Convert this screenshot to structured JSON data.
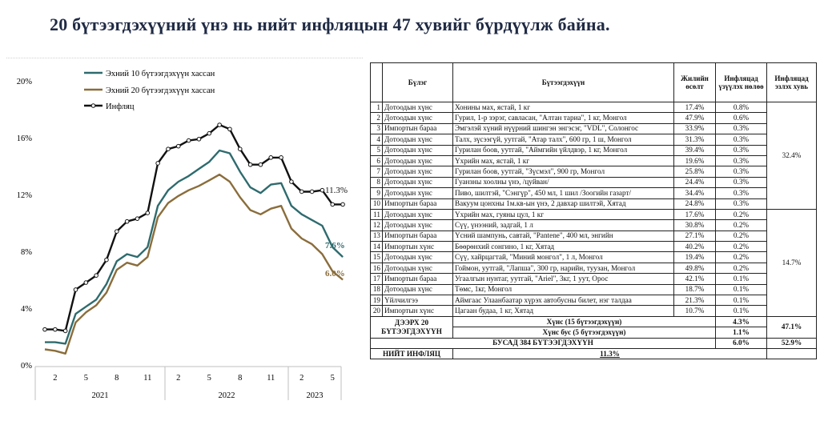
{
  "title": "20 бүтээгдэхүүний үнэ нь нийт инфляцын 47 хувийг бүрдүүлж байна.",
  "colors": {
    "series_top10": "#2e6b6e",
    "series_top20": "#8a6d3b",
    "inflation": "#111111",
    "title": "#1f2a44"
  },
  "chart_data": {
    "type": "line",
    "ylim": [
      0,
      20
    ],
    "yticks": [
      "0%",
      "4%",
      "8%",
      "12%",
      "16%",
      "20%"
    ],
    "ytick_values": [
      0,
      4,
      8,
      12,
      16,
      20
    ],
    "xtick_labels": [
      "2",
      "5",
      "8",
      "11",
      "2",
      "5",
      "8",
      "11",
      "2",
      "5"
    ],
    "xtick_index": [
      1,
      4,
      7,
      10,
      13,
      16,
      19,
      22,
      25,
      28
    ],
    "year_labels": [
      "2021",
      "2022",
      "2023"
    ],
    "legend_position": "top-left",
    "series": [
      {
        "name": "Эхний 10 бүтээгдэхүүн хассан",
        "key": "top10",
        "values": [
          1.6,
          1.6,
          1.5,
          3.6,
          4.1,
          4.6,
          5.7,
          7.3,
          7.8,
          7.6,
          8.3,
          11.2,
          12.3,
          12.9,
          13.3,
          13.8,
          14.3,
          15.1,
          14.9,
          13.6,
          12.5,
          12.1,
          12.7,
          12.8,
          11.2,
          10.6,
          10.2,
          9.8,
          8.3,
          7.6
        ],
        "end_label": "7.6%"
      },
      {
        "name": "Эхний 20 бүтээгдэхүүн хассан",
        "key": "top20",
        "values": [
          1.1,
          1.0,
          0.8,
          3.0,
          3.7,
          4.2,
          5.1,
          6.7,
          7.2,
          7.0,
          7.6,
          10.4,
          11.4,
          11.9,
          12.3,
          12.6,
          13.0,
          13.4,
          12.9,
          11.8,
          10.9,
          10.6,
          11.0,
          11.2,
          9.6,
          8.9,
          8.5,
          7.8,
          6.6,
          6.0
        ],
        "end_label": "6.0%"
      },
      {
        "name": "Инфляц",
        "key": "inflation",
        "values": [
          2.5,
          2.5,
          2.4,
          5.3,
          5.8,
          6.3,
          7.4,
          9.4,
          10.1,
          10.3,
          10.7,
          14.2,
          15.2,
          15.4,
          15.8,
          15.9,
          16.3,
          16.9,
          16.6,
          15.2,
          14.1,
          14.1,
          14.6,
          14.6,
          12.9,
          12.2,
          12.2,
          12.3,
          11.3,
          11.3
        ],
        "end_label": "11.3%"
      }
    ]
  },
  "table": {
    "headers": {
      "idx": "",
      "sector": "Бүлэг",
      "product": "Бүтээгдэхүүн",
      "annual": "Жилийн өсөлт",
      "contrib": "Инфляцад үзүүлэх нөлөө",
      "share": "Инфляцад эзлэх хувь"
    },
    "rows": [
      {
        "n": "1",
        "sector": "Дотоодын хүнс",
        "product": "Хонины мах, ястай, 1 кг",
        "annual": "17.4%",
        "contrib": "0.8%"
      },
      {
        "n": "2",
        "sector": "Дотоодын хүнс",
        "product": "Гурил, 1-р зэрэг, савласан, \"Алтан тариа\", 1 кг, Монгол",
        "annual": "47.9%",
        "contrib": "0.6%"
      },
      {
        "n": "3",
        "sector": "Импортын бараа",
        "product": "Эмгэлэй хүний нүүрний шингэн энгэсэг, \"VDL\", Солонгос",
        "annual": "33.9%",
        "contrib": "0.3%"
      },
      {
        "n": "4",
        "sector": "Дотоодын хүнс",
        "product": "Талх, зүсээгүй, уутгай, \"Атар талх\", 600 гр, 1 ш, Монгол",
        "annual": "31.3%",
        "contrib": "0.3%"
      },
      {
        "n": "5",
        "sector": "Дотоодын хүнс",
        "product": "Гурилан боов, уутгай, \"Аймгийн үйлдвэр, 1 кг, Монгол",
        "annual": "39.4%",
        "contrib": "0.3%"
      },
      {
        "n": "6",
        "sector": "Дотоодын хүнс",
        "product": "Үхрийн мах, ястай, 1 кг",
        "annual": "19.6%",
        "contrib": "0.3%"
      },
      {
        "n": "7",
        "sector": "Дотоодын хүнс",
        "product": "Гурилан боов, уутгай, \"Зүсмэл\", 900 гр, Монгол",
        "annual": "25.8%",
        "contrib": "0.3%"
      },
      {
        "n": "8",
        "sector": "Дотоодын хүнс",
        "product": "Гуанзны хоолны үнэ, /цуйван/",
        "annual": "24.4%",
        "contrib": "0.3%"
      },
      {
        "n": "9",
        "sector": "Дотоодын хүнс",
        "product": "Пиво, шилтэй, \"Сэнгүр\", 450 мл, 1 шил /Зоогийн газарт/",
        "annual": "34.4%",
        "contrib": "0.3%"
      },
      {
        "n": "10",
        "sector": "Импортын бараа",
        "product": "Вакуум цонхны 1м.кв-ын үнэ, 2 давхар шилтэй, Хятад",
        "annual": "24.8%",
        "contrib": "0.3%"
      },
      {
        "n": "11",
        "sector": "Дотоодын хүнс",
        "product": "Үхрийн мах, гуяны цул, 1 кг",
        "annual": "17.6%",
        "contrib": "0.2%"
      },
      {
        "n": "12",
        "sector": "Дотоодын хүнс",
        "product": "Сүү, үнээний, задгай, 1 л",
        "annual": "30.8%",
        "contrib": "0.2%"
      },
      {
        "n": "13",
        "sector": "Импортын бараа",
        "product": "Үсний шампунь, савтай, \"Pantene\", 400 мл, энгийн",
        "annual": "27.1%",
        "contrib": "0.2%"
      },
      {
        "n": "14",
        "sector": "Импортын хүнс",
        "product": "Бөөрөнхий сонгино, 1 кг, Хятад",
        "annual": "40.2%",
        "contrib": "0.2%"
      },
      {
        "n": "15",
        "sector": "Дотоодын хүнс",
        "product": "Сүү, хайрцагтай, \"Миний монгол\", 1 л, Монгол",
        "annual": "19.4%",
        "contrib": "0.2%"
      },
      {
        "n": "16",
        "sector": "Дотоодын хүнс",
        "product": "Гоймон, уутгай, \"Лапша\", 300 гр, нарийн, туузан, Монгол",
        "annual": "49.8%",
        "contrib": "0.2%"
      },
      {
        "n": "17",
        "sector": "Импортын бараа",
        "product": "Угаалгын нунтаг, уутгай, \"Ariel\", 3кг, 1 уут, Орос",
        "annual": "42.1%",
        "contrib": "0.1%"
      },
      {
        "n": "18",
        "sector": "Дотоодын хүнс",
        "product": "Төмс, 1кг, Монгол",
        "annual": "18.7%",
        "contrib": "0.1%"
      },
      {
        "n": "19",
        "sector": "Үйлчилгээ",
        "product": "Аймгаас Улаанбаатар хүрэх автобусны билет, нэг талдаа",
        "annual": "21.3%",
        "contrib": "0.1%"
      },
      {
        "n": "20",
        "sector": "Импортын хүнс",
        "product": "Цагаан будаа, 1 кг, Хятад",
        "annual": "10.7%",
        "contrib": "0.1%"
      }
    ],
    "group_share_1_10": "32.4%",
    "group_share_11_20": "14.7%",
    "summary": {
      "label_above20": "ДЭЭРХ 20 БҮТЭЭГДЭХҮҮН",
      "food_label": "Хүнс (15 бүтээгдэхүүн)",
      "food_value": "4.3%",
      "nonfood_label": "Хүнс бус (5 бүтээгдэхүүн)",
      "nonfood_value": "1.1%",
      "above20_share": "47.1%",
      "other_label": "БУСАД 384 БҮТЭЭГДЭХҮҮН",
      "other_value": "6.0%",
      "other_share": "52.9%",
      "total_label": "НИЙТ ИНФЛЯЦ",
      "total_value": "11.3%"
    }
  }
}
